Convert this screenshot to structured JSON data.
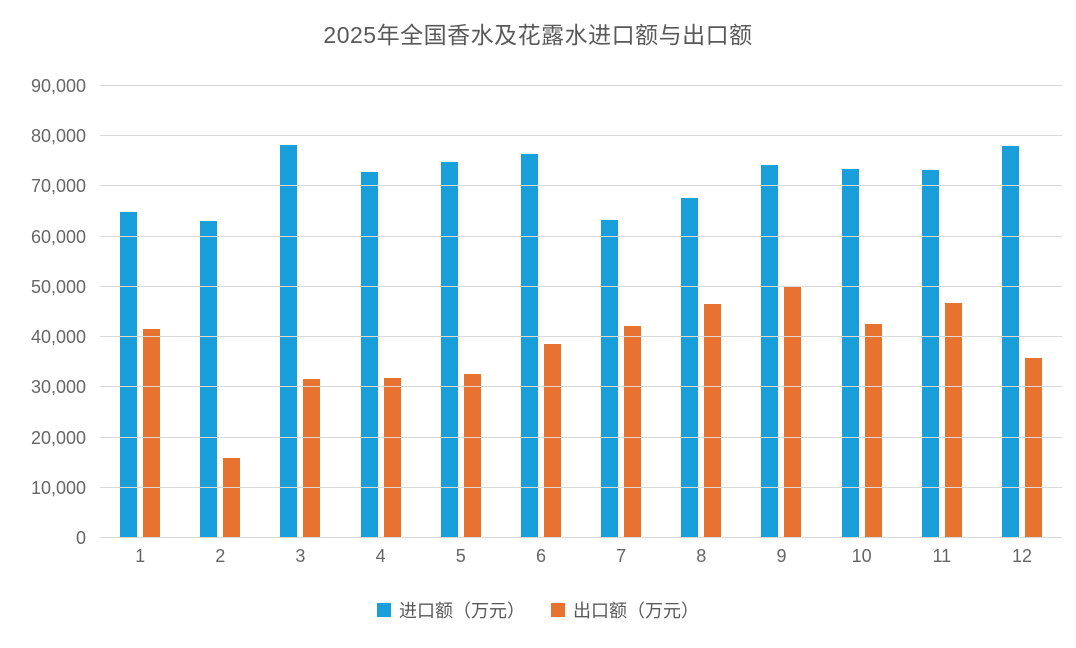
{
  "chart_data": {
    "type": "bar",
    "title": "2025年全国香水及花露水进口额与出口额",
    "categories": [
      "1",
      "2",
      "3",
      "4",
      "5",
      "6",
      "7",
      "8",
      "9",
      "10",
      "11",
      "12"
    ],
    "series": [
      {
        "id": "import",
        "name": "进口额（万元）",
        "color": "#189ED8",
        "values": [
          64900,
          63100,
          78200,
          72900,
          74900,
          76400,
          63300,
          67800,
          74200,
          73500,
          73200,
          78000
        ]
      },
      {
        "id": "export",
        "name": "出口额（万元）",
        "color": "#E8722F",
        "values": [
          41700,
          15900,
          31600,
          31800,
          32600,
          38700,
          42300,
          46600,
          50100,
          42600,
          46700,
          35900
        ]
      }
    ],
    "xlabel": "",
    "ylabel": "",
    "ylim": [
      0,
      90000
    ],
    "ytick_step": 10000,
    "ytick_format": "thousands-comma",
    "grid": true,
    "grid_color": "#d9d9d9",
    "text_color": "#595959",
    "tick_color": "#666666",
    "legend_position": "bottom"
  }
}
